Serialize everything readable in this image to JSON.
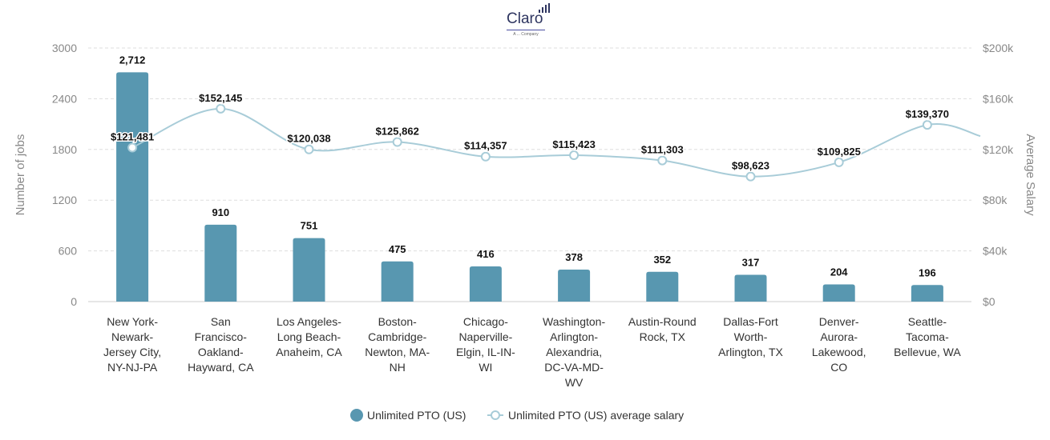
{
  "logo": {
    "name": "Claro",
    "tagline": "A ... Company"
  },
  "chart_data": {
    "type": "bar+line",
    "categories": [
      "New York-Newark-Jersey City, NY-NJ-PA",
      "San Francisco-Oakland-Hayward, CA",
      "Los Angeles-Long Beach-Anaheim, CA",
      "Boston-Cambridge-Newton, MA-NH",
      "Chicago-Naperville-Elgin, IL-IN-WI",
      "Washington-Arlington-Alexandria, DC-VA-MD-WV",
      "Austin-Round Rock, TX",
      "Dallas-Fort Worth-Arlington, TX",
      "Denver-Aurora-Lakewood, CO",
      "Seattle-Tacoma-Bellevue, WA"
    ],
    "category_lines": [
      [
        "New York-",
        "Newark-",
        "Jersey City,",
        "NY-NJ-PA"
      ],
      [
        "San",
        "Francisco-",
        "Oakland-",
        "Hayward, CA"
      ],
      [
        "Los Angeles-",
        "Long Beach-",
        "Anaheim, CA"
      ],
      [
        "Boston-",
        "Cambridge-",
        "Newton, MA-",
        "NH"
      ],
      [
        "Chicago-",
        "Naperville-",
        "Elgin, IL-IN-",
        "WI"
      ],
      [
        "Washington-",
        "Arlington-",
        "Alexandria,",
        "DC-VA-MD-",
        "WV"
      ],
      [
        "Austin-Round",
        "Rock, TX"
      ],
      [
        "Dallas-Fort",
        "Worth-",
        "Arlington, TX"
      ],
      [
        "Denver-",
        "Aurora-",
        "Lakewood,",
        "CO"
      ],
      [
        "Seattle-",
        "Tacoma-",
        "Bellevue, WA"
      ]
    ],
    "series": [
      {
        "name": "Unlimited PTO (US)",
        "type": "bar",
        "axis": "left",
        "color": "#5897b0",
        "values": [
          2712,
          910,
          751,
          475,
          416,
          378,
          352,
          317,
          204,
          196
        ],
        "labels": [
          "2,712",
          "910",
          "751",
          "475",
          "416",
          "378",
          "352",
          "317",
          "204",
          "196"
        ]
      },
      {
        "name": "Unlimited PTO (US) average salary",
        "type": "line",
        "axis": "right",
        "color": "#a8ccd8",
        "values": [
          121481,
          152145,
          120038,
          125862,
          114357,
          115423,
          111303,
          98623,
          109825,
          139370
        ],
        "labels": [
          "$121,481",
          "$152,145",
          "$120,038",
          "$125,862",
          "$114,357",
          "$115,423",
          "$111,303",
          "$98,623",
          "$109,825",
          "$139,370"
        ]
      }
    ],
    "ylabel": "Number of jobs",
    "ylim": [
      0,
      3000
    ],
    "yticks": [
      "0",
      "600",
      "1200",
      "1800",
      "2400",
      "3000"
    ],
    "y2label": "Average Salary",
    "y2lim": [
      0,
      200000
    ],
    "y2ticks": [
      "$0",
      "$40k",
      "$80k",
      "$120k",
      "$160k",
      "$200k"
    ],
    "grid": true,
    "legend": "bottom"
  }
}
